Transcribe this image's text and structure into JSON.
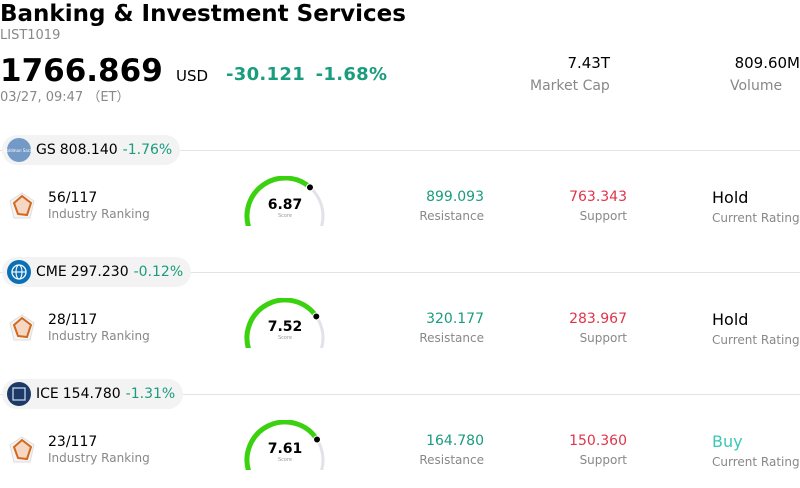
{
  "header": {
    "title": "Banking & Investment Services",
    "code": "LIST1019",
    "price": "1766.869",
    "currency": "USD",
    "change": "-30.121",
    "change_pct": "-1.68%",
    "time": "03/27, 09:47 （ET）"
  },
  "stats": [
    {
      "value": "7.43T",
      "label": "Market Cap"
    },
    {
      "value": "809.60M",
      "label": "Volume"
    }
  ],
  "stocks": [
    {
      "symbol": "GS",
      "price": "808.140",
      "change_pct": "-1.76%",
      "logo_text": "Goldman Sachs",
      "logo_color": "#7399c6",
      "rank": "56/117",
      "rank_label": "Industry Ranking",
      "score": "6.87",
      "score_label": "Score",
      "score_fraction": 0.687,
      "resistance": "899.093",
      "resistance_label": "Resistance",
      "support": "763.343",
      "support_label": "Support",
      "rating": "Hold",
      "rating_label": "Current Rating",
      "rating_color": "#000000"
    },
    {
      "symbol": "CME",
      "price": "297.230",
      "change_pct": "-0.12%",
      "logo_text": "",
      "logo_color": "#0a6fb5",
      "rank": "28/117",
      "rank_label": "Industry Ranking",
      "score": "7.52",
      "score_label": "Score",
      "score_fraction": 0.752,
      "resistance": "320.177",
      "resistance_label": "Resistance",
      "support": "283.967",
      "support_label": "Support",
      "rating": "Hold",
      "rating_label": "Current Rating",
      "rating_color": "#000000"
    },
    {
      "symbol": "ICE",
      "price": "154.780",
      "change_pct": "-1.31%",
      "logo_text": "ICE",
      "logo_color": "#1d3a66",
      "rank": "23/117",
      "rank_label": "Industry Ranking",
      "score": "7.61",
      "score_label": "Score",
      "score_fraction": 0.761,
      "resistance": "164.780",
      "resistance_label": "Resistance",
      "support": "150.360",
      "support_label": "Support",
      "rating": "Buy",
      "rating_label": "Current Rating",
      "rating_color": "#3cc7b4"
    }
  ],
  "colors": {
    "positive": "#1a9c7e",
    "negative": "#e0344a",
    "gauge_fill": "#3ad10f",
    "gauge_track": "#e2e2e8",
    "rank_icon": "#d2691e"
  }
}
